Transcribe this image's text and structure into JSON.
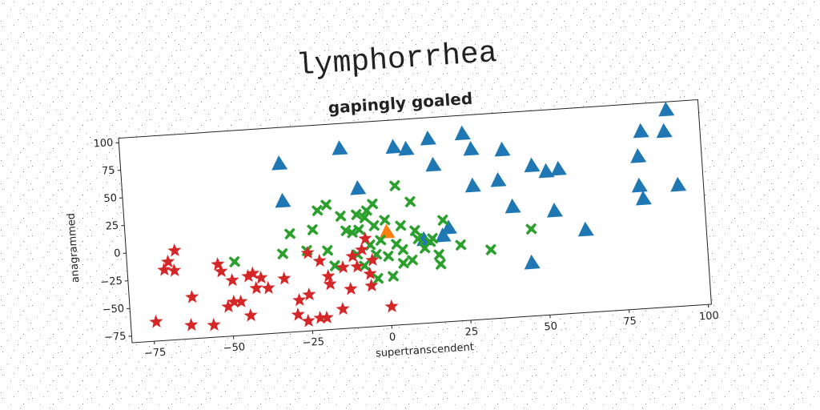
{
  "page": {
    "title": "lymphorrhea"
  },
  "chart_data": {
    "type": "scatter",
    "title": "gapingly goaled",
    "xlabel": "supertranscendent",
    "ylabel": "anagrammed",
    "xlim": [
      -82,
      101
    ],
    "ylim": [
      -81,
      104
    ],
    "xticks": [
      {
        "value": -75,
        "label": "−75"
      },
      {
        "value": -50,
        "label": "−50"
      },
      {
        "value": -25,
        "label": "−25"
      },
      0,
      25,
      50,
      75,
      100
    ],
    "yticks": [
      {
        "value": -75,
        "label": "−75"
      },
      {
        "value": -50,
        "label": "−50"
      },
      {
        "value": -25,
        "label": "−25"
      },
      0,
      25,
      50,
      75,
      100
    ],
    "series": [
      {
        "color": "#1f77b4",
        "marker": "triangle",
        "x": [
          -32,
          -31.7,
          -12.7,
          -7.8,
          4.2,
          8.2,
          15.3,
          16.4,
          26.2,
          28.6,
          28.4,
          38.4,
          36.5,
          40.5,
          47.4,
          51.8,
          55.7,
          53.6,
          45.4,
          63,
          81,
          82.4,
          90.8,
          89.7,
          80.8,
          81.8,
          93,
          18,
          12,
          20
        ],
        "values": [
          71,
          37,
          81,
          44,
          79,
          76.5,
          84.5,
          60.5,
          87,
          72.6,
          39.4,
          70,
          42.8,
          18.2,
          54,
          48,
          49.4,
          12,
          -33.4,
          -7,
          56,
          78.4,
          96.3,
          77,
          29.4,
          17.6,
          27.8,
          -3.7,
          -6,
          3
        ]
      },
      {
        "color": "#ff7f0e",
        "marker": "triangle",
        "x": [
          0.4
        ],
        "values": [
          3
        ]
      },
      {
        "color": "#2ca02c",
        "marker": "x",
        "x": [
          3.9,
          8.4,
          -3.5,
          -8.8,
          -6.3,
          -18.1,
          -21,
          -13.8,
          -8.3,
          -3.5,
          0,
          -12.4,
          -30.1,
          -22.9,
          -25.1,
          -18.6,
          -32.8,
          -48.1,
          -16.6,
          -9.3,
          -5.1,
          -3.3,
          0.4,
          3.2,
          5.1,
          7.9,
          1.5,
          -3.3,
          -7.3,
          4.9,
          9.3,
          10.1,
          13.9,
          16.7,
          16.4,
          18.3,
          23.4,
          32.8,
          45.9,
          14.7,
          -5.5,
          -10.5,
          -1.7,
          5,
          12
        ],
        "values": [
          44.7,
          29.3,
          29.5,
          21,
          17.7,
          31.5,
          27,
          20.5,
          7.2,
          9.9,
          14.3,
          7.2,
          7.7,
          9.9,
          -8.5,
          -9.7,
          -9.9,
          -14.2,
          -23.8,
          -15,
          -7.2,
          -16.2,
          -18.4,
          -8,
          -13.4,
          -23.4,
          -36.7,
          -38,
          -25.6,
          8.3,
          3.1,
          -4.4,
          -8,
          -28.7,
          -20,
          10.8,
          -12.6,
          -18.7,
          -2.4,
          -5.1,
          24,
          5,
          -3.5,
          -25.6,
          -13.3
        ]
      },
      {
        "color": "#d62728",
        "marker": "star",
        "x": [
          -74,
          -63,
          -55.9,
          -62.2,
          -69,
          -70.4,
          -67.2,
          -66.7,
          -53.4,
          -52.5,
          -49.2,
          -51,
          -49.1,
          -44.1,
          -44.1,
          -42.6,
          -40.1,
          -38,
          -32.8,
          -24.9,
          -21.3,
          -28.5,
          -25.3,
          -29.2,
          -26.1,
          -22.3,
          -20.2,
          -15,
          -18.5,
          -12.1,
          -5.5,
          -5.7,
          -9.6,
          -6.5,
          -4.7,
          0.4,
          -14.1,
          -7.8,
          -10.9,
          -18.9,
          -41.8,
          -46.9
        ],
        "values": [
          -63.7,
          -68.7,
          -70,
          -43.5,
          -10.3,
          -17.3,
          -18.6,
          -0.6,
          -15.5,
          -22.1,
          -30.8,
          -54.3,
          -50.3,
          -63.6,
          -28.1,
          -25.9,
          -30.3,
          -40,
          -32.4,
          -10.7,
          -18.6,
          -52.7,
          -48.3,
          -65.7,
          -72,
          -69.9,
          -70.2,
          -63.3,
          -40.1,
          -45.7,
          -44,
          -33.2,
          -25.9,
          -1.2,
          -21,
          -64,
          -25.8,
          -11,
          -16.3,
          -32.9,
          -39.3,
          -50.6
        ]
      }
    ]
  }
}
